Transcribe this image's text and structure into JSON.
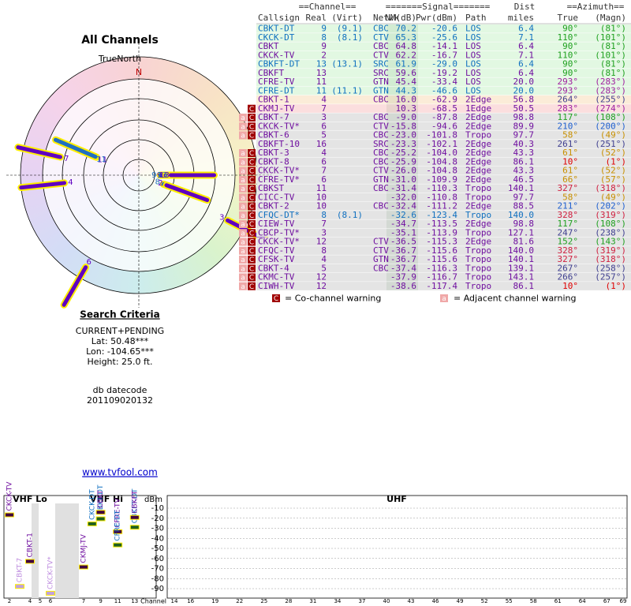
{
  "left": {
    "title": "All Channels",
    "north_label": "TrueNorth",
    "north_mark": "N",
    "criteria_title": "Search Criteria",
    "criteria": [
      "CURRENT+PENDING",
      "Lat: 50.48***",
      "Lon: -104.65***",
      "Height: 25.0 ft."
    ],
    "datecode_label": "db datecode",
    "datecode": "201109020132",
    "link": "www.tvfool.com"
  },
  "table": {
    "group_headers": [
      "==Channel==",
      "=======Signal=======",
      "Dist",
      "==Azimuth=="
    ],
    "headers": [
      "Callsign",
      "Real",
      "(Virt)",
      "Netwk",
      "NM(dB)",
      "Pwr(dBm)",
      "Path",
      "miles",
      "True",
      "(Magn)"
    ],
    "rows": [
      {
        "callsign": "CBKT-DT",
        "real": "9",
        "virt": "(9.1)",
        "netwk": "CBC",
        "nm": "70.2",
        "pwr": "-20.6",
        "path": "LOS",
        "dist": "6.4",
        "true": "90°",
        "magn": "(81°)"
      },
      {
        "callsign": "CKCK-DT",
        "real": "8",
        "virt": "(8.1)",
        "netwk": "CTV",
        "nm": "65.3",
        "pwr": "-25.6",
        "path": "LOS",
        "dist": "7.1",
        "true": "110°",
        "magn": "(101°)"
      },
      {
        "callsign": "CBKT",
        "real": "9",
        "netwk": "CBC",
        "nm": "64.8",
        "pwr": "-14.1",
        "path": "LOS",
        "dist": "6.4",
        "true": "90°",
        "magn": "(81°)"
      },
      {
        "callsign": "CKCK-TV",
        "real": "2",
        "netwk": "CTV",
        "nm": "62.2",
        "pwr": "-16.7",
        "path": "LOS",
        "dist": "7.1",
        "true": "110°",
        "magn": "(101°)"
      },
      {
        "callsign": "CBKFT-DT",
        "real": "13",
        "virt": "(13.1)",
        "netwk": "SRC",
        "nm": "61.9",
        "pwr": "-29.0",
        "path": "LOS",
        "dist": "6.4",
        "true": "90°",
        "magn": "(81°)"
      },
      {
        "callsign": "CBKFT",
        "real": "13",
        "netwk": "SRC",
        "nm": "59.6",
        "pwr": "-19.2",
        "path": "LOS",
        "dist": "6.4",
        "true": "90°",
        "magn": "(81°)"
      },
      {
        "callsign": "CFRE-TV",
        "real": "11",
        "netwk": "GTN",
        "nm": "45.4",
        "pwr": "-33.4",
        "path": "LOS",
        "dist": "20.0",
        "true": "293°",
        "magn": "(283°)"
      },
      {
        "callsign": "CFRE-DT",
        "real": "11",
        "virt": "(11.1)",
        "netwk": "GTN",
        "nm": "44.3",
        "pwr": "-46.6",
        "path": "LOS",
        "dist": "20.0",
        "true": "293°",
        "magn": "(283°)"
      },
      {
        "callsign": "CBKT-1",
        "real": "4",
        "netwk": "CBC",
        "nm": "16.0",
        "pwr": "-62.9",
        "path": "2Edge",
        "dist": "56.8",
        "true": "264°",
        "magn": "(255°)"
      },
      {
        "callsign": "CKMJ-TV",
        "real": "7",
        "nm": "10.3",
        "pwr": "-68.5",
        "path": "1Edge",
        "dist": "50.5",
        "true": "283°",
        "magn": "(274°)",
        "warn": [
          "C"
        ]
      },
      {
        "callsign": "CBKT-7",
        "real": "3",
        "netwk": "CBC",
        "nm": "-9.0",
        "pwr": "-87.8",
        "path": "2Edge",
        "dist": "98.8",
        "true": "117°",
        "magn": "(108°)",
        "warn": [
          "a",
          "C"
        ]
      },
      {
        "callsign": "CKCK-TV*",
        "real": "6",
        "netwk": "CTV",
        "nm": "-15.8",
        "pwr": "-94.6",
        "path": "2Edge",
        "dist": "89.9",
        "true": "210°",
        "magn": "(200°)",
        "warn": [
          "a",
          "C"
        ]
      },
      {
        "callsign": "CBKT-6",
        "real": "5",
        "netwk": "CBC",
        "nm": "-23.0",
        "pwr": "-101.8",
        "path": "Tropo",
        "dist": "97.7",
        "true": "58°",
        "magn": "(49°)",
        "warn": [
          "a",
          "C"
        ]
      },
      {
        "callsign": "CBKFT-10",
        "real": "16",
        "netwk": "SRC",
        "nm": "-23.3",
        "pwr": "-102.1",
        "path": "2Edge",
        "dist": "40.3",
        "true": "261°",
        "magn": "(251°)"
      },
      {
        "callsign": "CBKT-3",
        "real": "4",
        "netwk": "CBC",
        "nm": "-25.2",
        "pwr": "-104.0",
        "path": "2Edge",
        "dist": "43.3",
        "true": "61°",
        "magn": "(52°)",
        "warn": [
          "a",
          "C"
        ]
      },
      {
        "callsign": "CBKT-8",
        "real": "6",
        "netwk": "CBC",
        "nm": "-25.9",
        "pwr": "-104.8",
        "path": "2Edge",
        "dist": "86.1",
        "true": "10°",
        "magn": "(1°)",
        "warn": [
          "a",
          "C"
        ]
      },
      {
        "callsign": "CKCK-TV*",
        "real": "7",
        "netwk": "CTV",
        "nm": "-26.0",
        "pwr": "-104.8",
        "path": "2Edge",
        "dist": "43.3",
        "true": "61°",
        "magn": "(52°)",
        "warn": [
          "a",
          "C"
        ]
      },
      {
        "callsign": "CFRE-TV*",
        "real": "6",
        "netwk": "GTN",
        "nm": "-31.0",
        "pwr": "-109.9",
        "path": "2Edge",
        "dist": "46.5",
        "true": "66°",
        "magn": "(57°)",
        "warn": [
          "a",
          "C"
        ]
      },
      {
        "callsign": "CBKST",
        "real": "11",
        "netwk": "CBC",
        "nm": "-31.4",
        "pwr": "-110.3",
        "path": "Tropo",
        "dist": "140.1",
        "true": "327°",
        "magn": "(318°)",
        "warn": [
          "a",
          "C"
        ]
      },
      {
        "callsign": "CICC-TV",
        "real": "10",
        "nm": "-32.0",
        "pwr": "-110.8",
        "path": "Tropo",
        "dist": "97.7",
        "true": "58°",
        "magn": "(49°)",
        "warn": [
          "a",
          "C"
        ]
      },
      {
        "callsign": "CBKT-2",
        "real": "10",
        "netwk": "CBC",
        "nm": "-32.4",
        "pwr": "-111.2",
        "path": "2Edge",
        "dist": "88.5",
        "true": "211°",
        "magn": "(202°)",
        "warn": [
          "a",
          "C"
        ]
      },
      {
        "callsign": "CFQC-DT*",
        "real": "8",
        "virt": "(8.1)",
        "nm": "-32.6",
        "pwr": "-123.4",
        "path": "Tropo",
        "dist": "140.0",
        "true": "328°",
        "magn": "(319°)",
        "warn": [
          "a",
          "C"
        ]
      },
      {
        "callsign": "CIEW-TV",
        "real": "7",
        "nm": "-34.7",
        "pwr": "-113.5",
        "path": "2Edge",
        "dist": "98.8",
        "true": "117°",
        "magn": "(108°)",
        "warn": [
          "a",
          "C"
        ]
      },
      {
        "callsign": "CBCP-TV*",
        "real": "3",
        "nm": "-35.1",
        "pwr": "-113.9",
        "path": "Tropo",
        "dist": "127.1",
        "true": "247°",
        "magn": "(238°)",
        "warn": [
          "a",
          "C"
        ]
      },
      {
        "callsign": "CKCK-TV*",
        "real": "12",
        "netwk": "CTV",
        "nm": "-36.5",
        "pwr": "-115.3",
        "path": "2Edge",
        "dist": "81.6",
        "true": "152°",
        "magn": "(143°)",
        "warn": [
          "a",
          "C"
        ]
      },
      {
        "callsign": "CFQC-TV",
        "real": "8",
        "netwk": "CTV",
        "nm": "-36.7",
        "pwr": "-115.6",
        "path": "Tropo",
        "dist": "140.0",
        "true": "328°",
        "magn": "(319°)",
        "warn": [
          "a",
          "C"
        ]
      },
      {
        "callsign": "CFSK-TV",
        "real": "4",
        "netwk": "GTN",
        "nm": "-36.7",
        "pwr": "-115.6",
        "path": "Tropo",
        "dist": "140.1",
        "true": "327°",
        "magn": "(318°)",
        "warn": [
          "a",
          "C"
        ]
      },
      {
        "callsign": "CBKT-4",
        "real": "5",
        "netwk": "CBC",
        "nm": "-37.4",
        "pwr": "-116.3",
        "path": "Tropo",
        "dist": "139.1",
        "true": "267°",
        "magn": "(258°)",
        "warn": [
          "a",
          "C"
        ]
      },
      {
        "callsign": "CKMC-TV",
        "real": "12",
        "nm": "-37.9",
        "pwr": "-116.7",
        "path": "Tropo",
        "dist": "143.1",
        "true": "266°",
        "magn": "(257°)",
        "warn": [
          "a",
          "C"
        ]
      },
      {
        "callsign": "CIWH-TV",
        "real": "12",
        "nm": "-38.6",
        "pwr": "-117.4",
        "path": "Tropo",
        "dist": "86.1",
        "true": "10°",
        "magn": "(1°)",
        "warn": [
          "a",
          "C"
        ]
      }
    ]
  },
  "legend": {
    "co_icon": "C",
    "co": "= Co-channel warning",
    "adj_icon": "a",
    "adj": "= Adjacent channel warning"
  },
  "spectrum": {
    "bands": [
      "VHF Lo",
      "VHF Hi",
      "UHF"
    ],
    "ylabel": "dBm",
    "xlabel": "Channel",
    "yticks": [
      -10,
      -20,
      -30,
      -40,
      -50,
      -60,
      -70,
      -80,
      -90
    ],
    "vhf_ticks": [
      2,
      4,
      5,
      6,
      7,
      9,
      11,
      13
    ],
    "uhf_ticks": [
      14,
      16,
      19,
      22,
      25,
      28,
      31,
      34,
      37,
      40,
      43,
      46,
      49,
      52,
      55,
      58,
      61,
      64,
      67,
      69
    ]
  }
}
